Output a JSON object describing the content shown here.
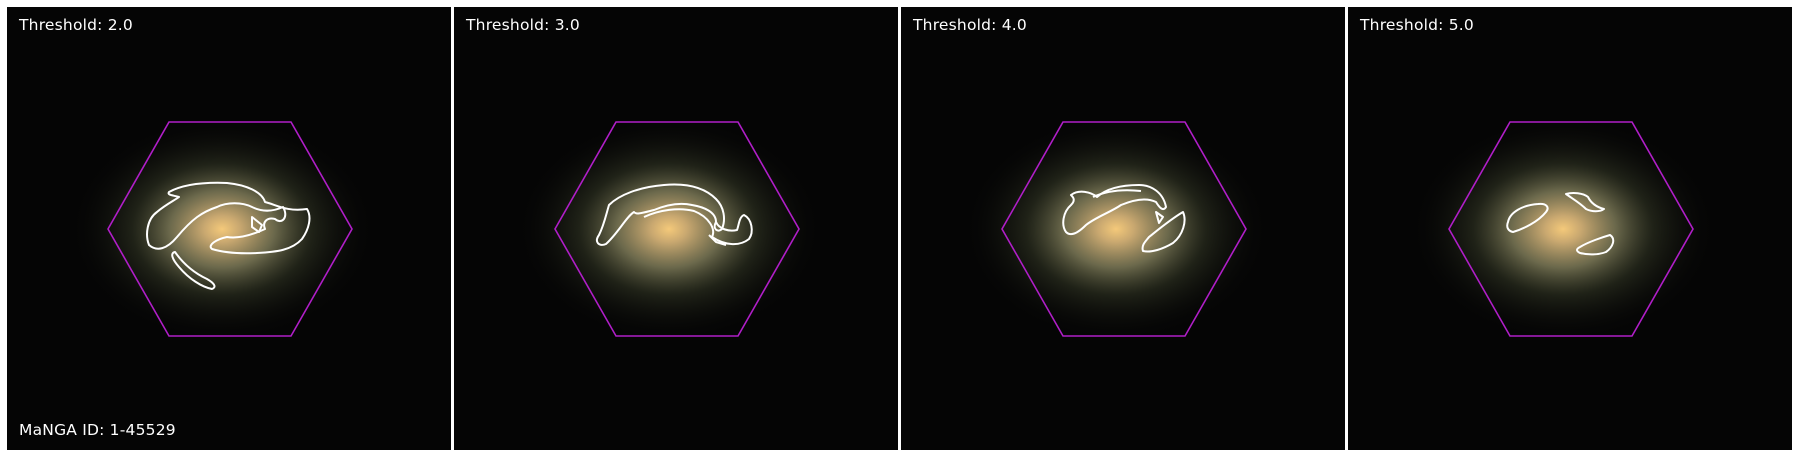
{
  "figure": {
    "manga_id_label": "MaNGA ID: 1-45529",
    "colors": {
      "background": "#050505",
      "hexagon": "#b01ec8",
      "contour": "#ffffff",
      "label_text": "#ffffff",
      "galaxy_core": "#e8b86a",
      "galaxy_halo": "#7a7a55"
    },
    "panels": [
      {
        "title": "Threshold: 2.0"
      },
      {
        "title": "Threshold: 3.0"
      },
      {
        "title": "Threshold: 4.0"
      },
      {
        "title": "Threshold: 5.0"
      }
    ]
  }
}
